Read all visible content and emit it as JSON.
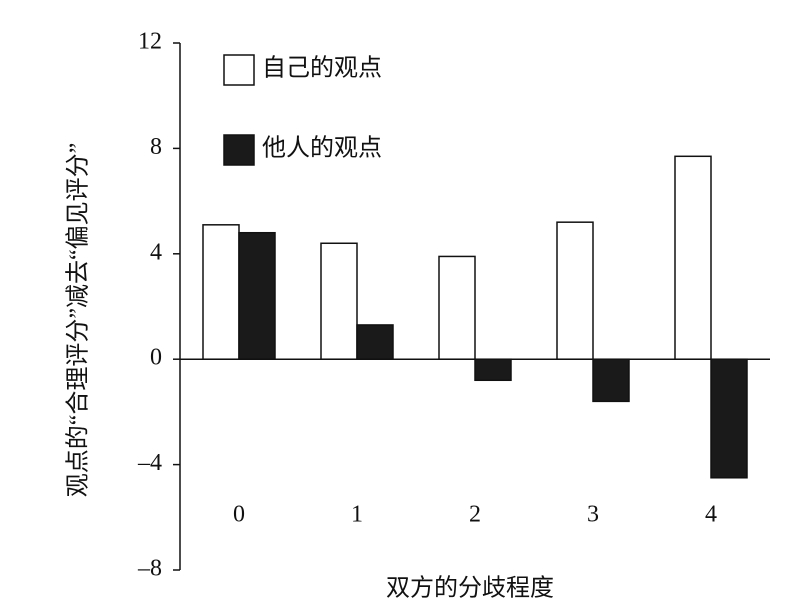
{
  "chart_data": {
    "type": "bar",
    "y_label": "观点的“合理评分”减去“偏见评分”",
    "x_label": "双方的分歧程度",
    "categories": [
      "0",
      "1",
      "2",
      "3",
      "4"
    ],
    "series": [
      {
        "name": "自己的观点",
        "color": "#ffffff",
        "values": [
          5.1,
          4.4,
          3.9,
          5.2,
          7.7
        ]
      },
      {
        "name": "他人的观点",
        "color": "#1a1a1a",
        "values": [
          4.8,
          1.3,
          -0.8,
          -1.6,
          -4.5
        ]
      }
    ],
    "ylim": [
      -8,
      12
    ],
    "yticks": [
      {
        "value": -8,
        "label": "–8"
      },
      {
        "value": -4,
        "label": "–4"
      },
      0,
      4,
      8,
      12
    ],
    "legend": "upper-left"
  }
}
